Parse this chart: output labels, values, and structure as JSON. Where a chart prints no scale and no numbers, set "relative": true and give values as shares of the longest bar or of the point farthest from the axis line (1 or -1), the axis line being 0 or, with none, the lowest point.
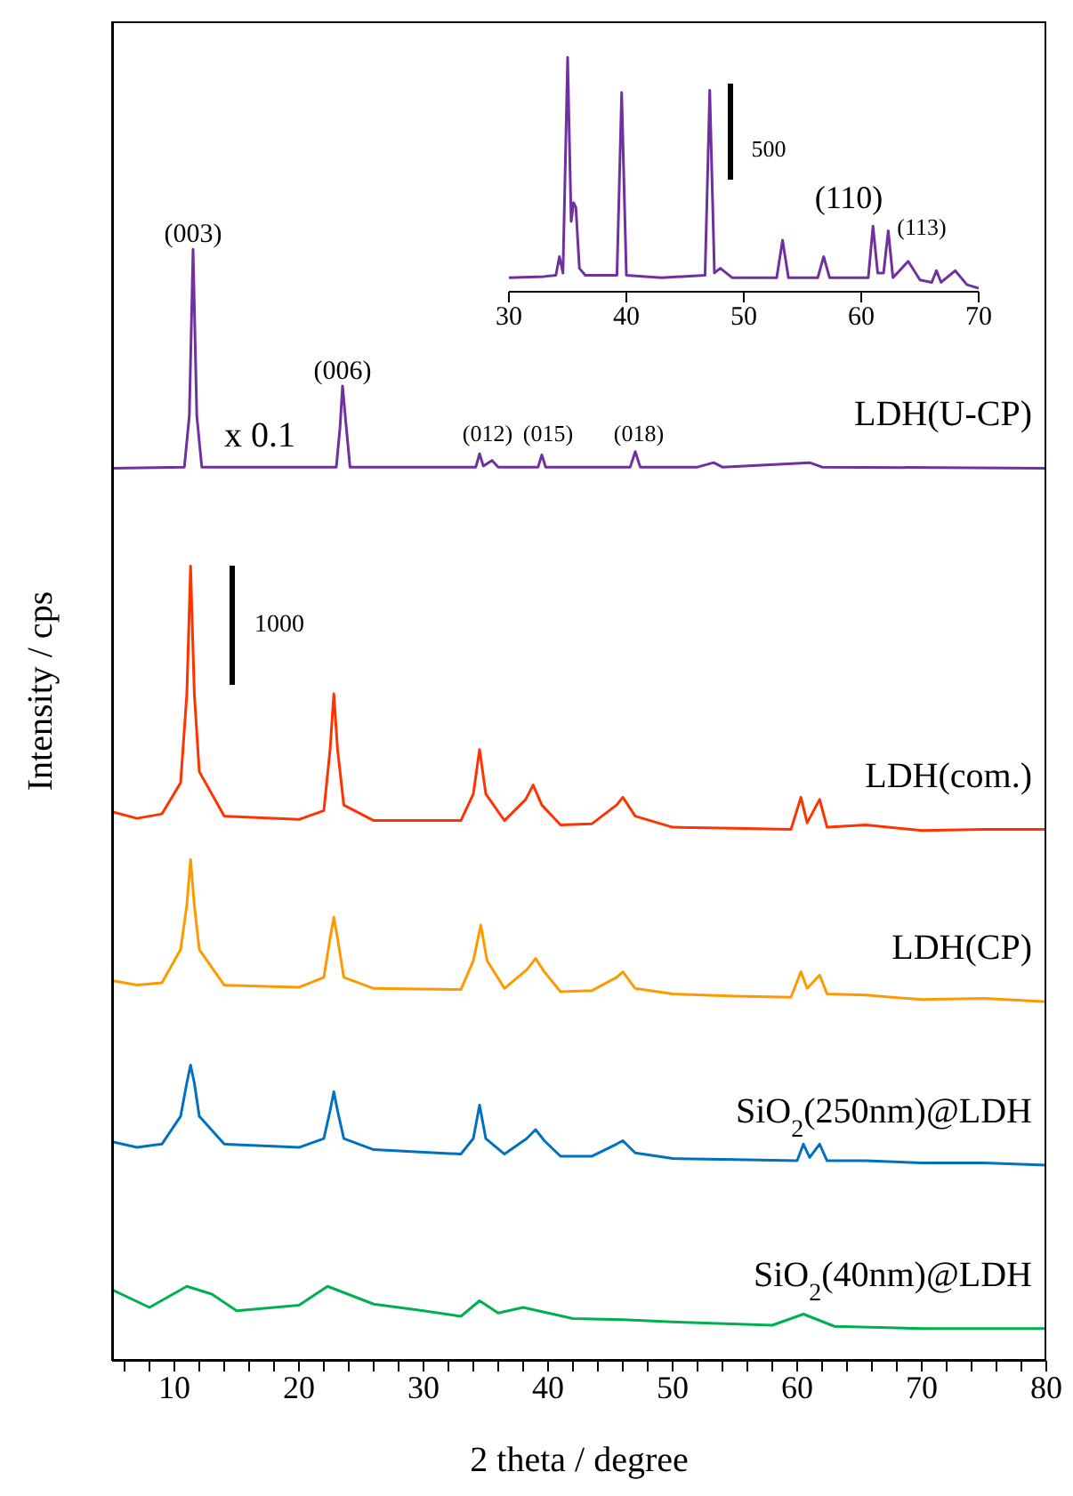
{
  "chart_data": [
    {
      "type": "line",
      "relative": true,
      "xlabel": "2 theta / degree",
      "ylabel": "Intensity / cps",
      "xlim": [
        5,
        80
      ],
      "xticks": [
        {
          "value": 6,
          "label": null
        },
        {
          "value": 8,
          "label": null
        },
        10,
        {
          "value": 12,
          "label": null
        },
        {
          "value": 14,
          "label": null
        },
        {
          "value": 16,
          "label": null
        },
        {
          "value": 18,
          "label": null
        },
        20,
        {
          "value": 22,
          "label": null
        },
        {
          "value": 24,
          "label": null
        },
        {
          "value": 26,
          "label": null
        },
        {
          "value": 28,
          "label": null
        },
        30,
        {
          "value": 32,
          "label": null
        },
        {
          "value": 34,
          "label": null
        },
        {
          "value": 36,
          "label": null
        },
        {
          "value": 38,
          "label": null
        },
        40,
        {
          "value": 42,
          "label": null
        },
        {
          "value": 44,
          "label": null
        },
        {
          "value": 46,
          "label": null
        },
        {
          "value": 48,
          "label": null
        },
        50,
        {
          "value": 52,
          "label": null
        },
        {
          "value": 54,
          "label": null
        },
        {
          "value": 56,
          "label": null
        },
        {
          "value": 58,
          "label": null
        },
        60,
        {
          "value": 62,
          "label": null
        },
        {
          "value": 64,
          "label": null
        },
        {
          "value": 66,
          "label": null
        },
        {
          "value": 68,
          "label": null
        },
        70,
        {
          "value": 72,
          "label": null
        },
        {
          "value": 74,
          "label": null
        },
        {
          "value": 76,
          "label": null
        },
        {
          "value": 78,
          "label": null
        },
        80
      ],
      "series": [
        {
          "name": "LDH(U-CP)",
          "color": "#7030a0",
          "x": [
            5,
            10.8,
            11.2,
            11.5,
            11.8,
            12.2,
            23,
            23.3,
            23.5,
            23.8,
            24.1,
            34.2,
            34.5,
            34.8,
            35.5,
            36,
            39.2,
            39.5,
            39.8,
            46.6,
            47,
            47.4,
            52,
            53.3,
            54,
            61,
            62,
            80
          ],
          "values": [
            0.803,
            0.804,
            0.85,
            1.0,
            0.85,
            0.804,
            0.804,
            0.84,
            0.877,
            0.84,
            0.804,
            0.804,
            0.816,
            0.805,
            0.81,
            0.804,
            0.804,
            0.815,
            0.804,
            0.804,
            0.818,
            0.804,
            0.804,
            0.808,
            0.804,
            0.808,
            0.804,
            0.803
          ]
        },
        {
          "name": "LDH(com.)",
          "color": "#ff3300",
          "x": [
            5,
            7,
            9,
            10.5,
            11,
            11.3,
            11.6,
            12,
            14,
            20,
            22,
            22.5,
            22.8,
            23.1,
            23.6,
            26,
            33,
            34,
            34.5,
            35,
            36.5,
            38.2,
            38.8,
            39.5,
            41,
            43.5,
            45.5,
            46,
            47,
            50,
            55,
            59.5,
            60.3,
            60.8,
            61.8,
            62.4,
            65.5,
            70,
            75,
            80
          ],
          "values": [
            0.494,
            0.488,
            0.492,
            0.52,
            0.6,
            0.715,
            0.6,
            0.53,
            0.49,
            0.487,
            0.495,
            0.55,
            0.6,
            0.55,
            0.5,
            0.486,
            0.486,
            0.51,
            0.55,
            0.51,
            0.486,
            0.505,
            0.518,
            0.5,
            0.482,
            0.483,
            0.5,
            0.507,
            0.49,
            0.48,
            0.479,
            0.478,
            0.507,
            0.484,
            0.505,
            0.48,
            0.482,
            0.477,
            0.478,
            0.478
          ]
        },
        {
          "name": "LDH(CP)",
          "color": "#ff9900",
          "x": [
            5,
            7,
            9,
            10.5,
            11,
            11.3,
            11.6,
            12,
            14,
            20,
            22,
            22.5,
            22.8,
            23.1,
            23.6,
            26,
            33,
            34,
            34.6,
            35.1,
            36.5,
            38.3,
            39,
            39.7,
            41,
            43.5,
            45.5,
            46,
            47,
            50,
            55,
            59.5,
            60.3,
            60.8,
            61.8,
            62.4,
            65.5,
            70,
            75,
            80
          ],
          "values": [
            0.342,
            0.338,
            0.34,
            0.37,
            0.41,
            0.451,
            0.41,
            0.37,
            0.338,
            0.336,
            0.345,
            0.38,
            0.399,
            0.38,
            0.345,
            0.335,
            0.334,
            0.36,
            0.392,
            0.36,
            0.335,
            0.352,
            0.362,
            0.35,
            0.332,
            0.333,
            0.345,
            0.35,
            0.335,
            0.33,
            0.328,
            0.327,
            0.35,
            0.335,
            0.347,
            0.33,
            0.329,
            0.325,
            0.326,
            0.323
          ]
        },
        {
          "name": "SiO$_{2}$(250nm)@LDH",
          "color": "#0070c0",
          "x": [
            5,
            7,
            9,
            10.5,
            11,
            11.3,
            11.6,
            12,
            14,
            20,
            22,
            22.5,
            22.8,
            23.1,
            23.6,
            26,
            33,
            34,
            34.5,
            35,
            36.5,
            38.3,
            39,
            39.7,
            41,
            43.5,
            45.5,
            46,
            47,
            50,
            55,
            60,
            60.5,
            61,
            61.8,
            62.4,
            65.5,
            70,
            75,
            80
          ],
          "values": [
            0.197,
            0.192,
            0.195,
            0.22,
            0.25,
            0.266,
            0.25,
            0.22,
            0.195,
            0.192,
            0.2,
            0.225,
            0.242,
            0.225,
            0.2,
            0.19,
            0.186,
            0.2,
            0.23,
            0.2,
            0.186,
            0.2,
            0.208,
            0.198,
            0.184,
            0.184,
            0.195,
            0.198,
            0.187,
            0.182,
            0.181,
            0.18,
            0.195,
            0.183,
            0.195,
            0.18,
            0.18,
            0.178,
            0.178,
            0.176
          ]
        },
        {
          "name": "SiO$_{2}$(40nm)@LDH",
          "color": "#00b050",
          "x": [
            5,
            8,
            11,
            13,
            15,
            20,
            22.3,
            26,
            30,
            33,
            34.5,
            36,
            38,
            42,
            46,
            50,
            58,
            60.5,
            63,
            70,
            80
          ],
          "values": [
            0.064,
            0.048,
            0.067,
            0.06,
            0.045,
            0.05,
            0.067,
            0.051,
            0.045,
            0.04,
            0.054,
            0.043,
            0.048,
            0.038,
            0.037,
            0.035,
            0.032,
            0.042,
            0.031,
            0.029,
            0.029
          ]
        }
      ],
      "annotations": [
        {
          "text": "(003)",
          "x": 11.5,
          "y": 1.0
        },
        "x 0.1",
        {
          "text": "(006)",
          "x": 23.5,
          "y": 0.877
        },
        "(012)",
        "(015)",
        "(018)",
        "1000"
      ]
    },
    {
      "type": "line",
      "relative": true,
      "tick_labels": "x",
      "xlim": [
        30,
        70
      ],
      "xticks": [
        30,
        40,
        50,
        60,
        70
      ],
      "series": [
        {
          "color": "#7030a0",
          "x": [
            30,
            33,
            34,
            34.3,
            34.6,
            35,
            35.3,
            35.5,
            35.7,
            36,
            36.5,
            39.2,
            39.6,
            40,
            43,
            46.7,
            47.1,
            47.5,
            48,
            49,
            52.8,
            53.3,
            53.8,
            56.3,
            56.8,
            57.3,
            60.6,
            61,
            61.4,
            61.9,
            62.3,
            62.7,
            64,
            65,
            66,
            66.4,
            66.8,
            68,
            69,
            70
          ],
          "values": [
            0.06,
            0.065,
            0.07,
            0.15,
            0.08,
            1.0,
            0.3,
            0.38,
            0.36,
            0.1,
            0.07,
            0.07,
            0.85,
            0.07,
            0.06,
            0.07,
            0.86,
            0.08,
            0.1,
            0.06,
            0.06,
            0.22,
            0.06,
            0.06,
            0.15,
            0.06,
            0.06,
            0.28,
            0.08,
            0.08,
            0.26,
            0.06,
            0.13,
            0.05,
            0.04,
            0.09,
            0.04,
            0.09,
            0.03,
            0.015
          ]
        }
      ],
      "annotations": [
        "500",
        "(110)",
        "(113)"
      ]
    }
  ]
}
